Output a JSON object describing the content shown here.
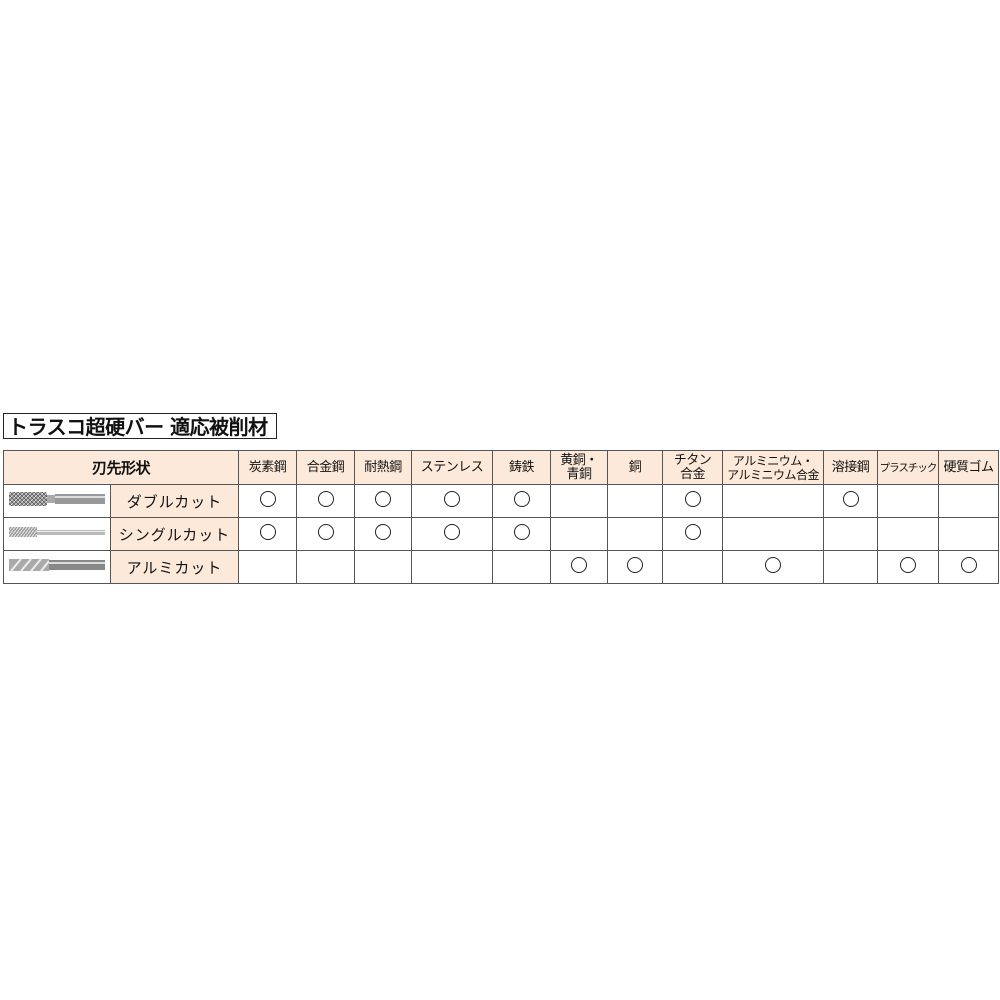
{
  "title": "トラスコ超硬バー 適応被削材",
  "header": {
    "shape": "刃先形状",
    "materials": [
      "炭素鋼",
      "合金鋼",
      "耐熱鋼",
      "ステンレス",
      "鋳鉄",
      "黄銅・\n青銅",
      "銅",
      "チタン\n合金",
      "アルミニウム・\nアルミニウム合金",
      "溶接鋼",
      "プラスチック",
      "硬質ゴム"
    ]
  },
  "mark": "circle",
  "rows": [
    {
      "label": "ダブルカット",
      "image": "double-cut-burr",
      "marks": [
        1,
        1,
        1,
        1,
        1,
        0,
        0,
        1,
        0,
        1,
        0,
        0
      ]
    },
    {
      "label": "シングルカット",
      "image": "single-cut-burr",
      "marks": [
        1,
        1,
        1,
        1,
        1,
        0,
        0,
        1,
        0,
        0,
        0,
        0
      ]
    },
    {
      "label": "アルミカット",
      "image": "aluminum-cut-burr",
      "marks": [
        0,
        0,
        0,
        0,
        0,
        1,
        1,
        0,
        1,
        0,
        1,
        1
      ]
    }
  ],
  "colors": {
    "header_bg": "#fce9da",
    "border": "#555555"
  }
}
